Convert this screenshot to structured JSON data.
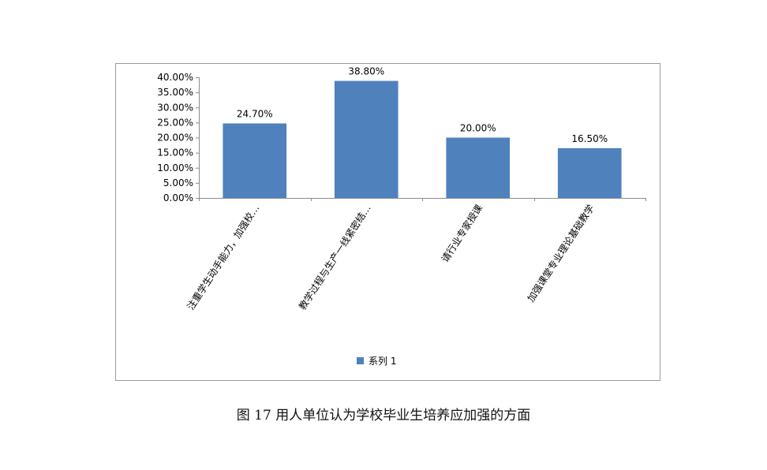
{
  "chart_data": {
    "type": "bar",
    "categories": [
      "注重学生动手能力，加强校…",
      "教学过程与生产一线紧密结…",
      "请行业专家授课",
      "加强课堂专业理论基础教学"
    ],
    "series": [
      {
        "name": "系列 1",
        "values": [
          24.7,
          38.8,
          20.0,
          16.5
        ],
        "color": "#4F81BD"
      }
    ],
    "data_labels": [
      "24.70%",
      "38.80%",
      "20.00%",
      "16.50%"
    ],
    "y_ticks": [
      "0.00%",
      "5.00%",
      "10.00%",
      "15.00%",
      "20.00%",
      "25.00%",
      "30.00%",
      "35.00%",
      "40.00%"
    ],
    "ylim": [
      0,
      40
    ],
    "title": "",
    "xlabel": "",
    "ylabel": "",
    "grid": false,
    "legend_position": "bottom"
  },
  "caption": "图 17 用人单位认为学校毕业生培养应加强的方面",
  "colors": {
    "bar": "#4F81BD",
    "frame": "#9a9a9a",
    "axis": "#8c8c8c"
  }
}
